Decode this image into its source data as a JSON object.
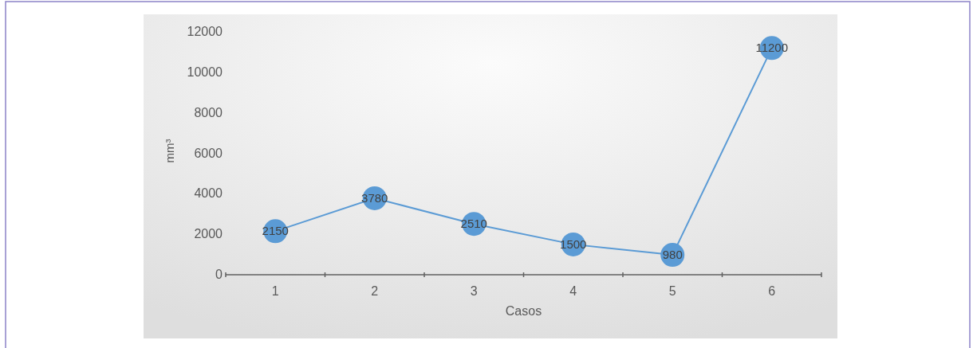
{
  "chart_data": {
    "type": "line",
    "xlabel": "Casos",
    "ylabel": "mm³",
    "categories": [
      "1",
      "2",
      "3",
      "4",
      "5",
      "6"
    ],
    "series": [
      {
        "color": "#5b9bd5",
        "values": [
          2150,
          3780,
          2510,
          1500,
          980,
          11200
        ]
      }
    ],
    "ylim": [
      0,
      12000
    ],
    "yticks": [
      0,
      2000,
      4000,
      6000,
      8000,
      10000,
      12000
    ],
    "data_labels": true,
    "marker": "circle",
    "grid": false
  }
}
